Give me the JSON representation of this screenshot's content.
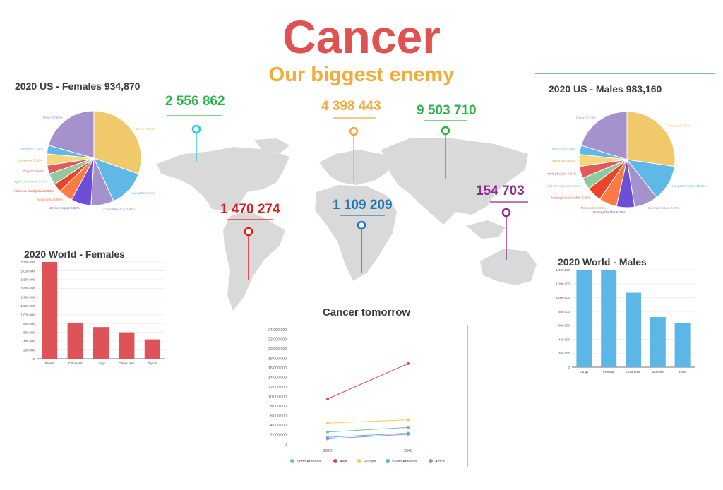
{
  "header": {
    "title": "Cancer",
    "subtitle": "Our biggest enemy",
    "title_color": "#e05252",
    "subtitle_color": "#f3ac3c"
  },
  "map": {
    "land_color": "#d9d9d9",
    "markers": [
      {
        "value": "2 556 862",
        "color": "#2bb44a",
        "pin_color": "#21d0d8"
      },
      {
        "value": "4 398 443",
        "color": "#f3ac3c",
        "pin_color": "#f3ac3c"
      },
      {
        "value": "9 503 710",
        "color": "#2bb44a",
        "pin_color": "#2bb44a"
      },
      {
        "value": "1 470 274",
        "color": "#e01b1b",
        "pin_color": "#e01b1b"
      },
      {
        "value": "1 109 209",
        "color": "#1e77c1",
        "pin_color": "#1e77c1"
      },
      {
        "value": "154 703",
        "color": "#8e2a8e",
        "pin_color": "#8e2a8e"
      }
    ]
  },
  "chart_data": [
    {
      "id": "us-females",
      "type": "pie",
      "title": "2020 US - Females 934,870",
      "slices": [
        {
          "label": "Breast 30.39%",
          "value": 30.39,
          "color": "#f0c96b"
        },
        {
          "label": "Lung&Bronchus 12.75%",
          "value": 12.75,
          "color": "#5fb8e6"
        },
        {
          "label": "Colon&Rectum 7.84%",
          "value": 7.84,
          "color": "#a592cc"
        },
        {
          "label": "Uterine corpus 6.86%",
          "value": 6.86,
          "color": "#6c4fd9"
        },
        {
          "label": "Melanoma 4.90%",
          "value": 4.9,
          "color": "#ff7a45"
        },
        {
          "label": "Kidney& renal pelvis 2.94%",
          "value": 2.94,
          "color": "#e8452b"
        },
        {
          "label": "Non-Hodgkin lymphoma 3.92%",
          "value": 3.92,
          "color": "#8fc9a0"
        },
        {
          "label": "Thyroid 2.94%",
          "value": 2.94,
          "color": "#e35a5a"
        },
        {
          "label": "Leukemia 3.92%",
          "value": 3.92,
          "color": "#f6d77a"
        },
        {
          "label": "Pancreas 2.94%",
          "value": 2.94,
          "color": "#62b6e8"
        },
        {
          "label": "Other 20.59%",
          "value": 20.59,
          "color": "#a592cc"
        }
      ]
    },
    {
      "id": "us-males",
      "type": "pie",
      "title": "2020 US - Males 983,160",
      "slices": [
        {
          "label": "Prostate 27.27%",
          "value": 27.27,
          "color": "#f0c96b"
        },
        {
          "label": "Lung&Bronchus 12.12%",
          "value": 12.12,
          "color": "#5fb8e6"
        },
        {
          "label": "Colon&Rectum 8.08%",
          "value": 8.08,
          "color": "#a592cc"
        },
        {
          "label": "Urinary bladder 6.06%",
          "value": 6.06,
          "color": "#6c4fd9"
        },
        {
          "label": "Melanoma 6.06%",
          "value": 6.06,
          "color": "#ff7a45"
        },
        {
          "label": "Kidney& renal pelvis 5.05%",
          "value": 5.05,
          "color": "#e8452b"
        },
        {
          "label": "Non-Hodgkin lymphoma 4.04%",
          "value": 4.04,
          "color": "#8fc9a0"
        },
        {
          "label": "Oral cavity& pharynx 4.04%",
          "value": 4.04,
          "color": "#e35a5a"
        },
        {
          "label": "Leukemia 4.04%",
          "value": 4.04,
          "color": "#f6d77a"
        },
        {
          "label": "Pancreas 3.03%",
          "value": 3.03,
          "color": "#62b6e8"
        },
        {
          "label": "Other 20.20%",
          "value": 20.2,
          "color": "#a592cc"
        }
      ]
    },
    {
      "id": "world-females",
      "type": "bar",
      "title": "2020 World - Females",
      "categories": [
        "Breast",
        "Colorectal",
        "Lungs",
        "Cervix uteri",
        "Thyroid"
      ],
      "values": [
        2260000,
        820000,
        720000,
        600000,
        440000
      ],
      "ylim": [
        0,
        2200000
      ],
      "yticks": [
        "0",
        "200.000",
        "400.000",
        "600.000",
        "800.000",
        "1.000.000",
        "1.200.000",
        "1.400.000",
        "1.600.000",
        "1.800.000",
        "2.000.000",
        "2.200.000"
      ],
      "color": "#de5357",
      "grid": true
    },
    {
      "id": "world-males",
      "type": "bar",
      "title": "2020 World - Males",
      "categories": [
        "Lungs",
        "Prostate",
        "Colorectal",
        "Stomach",
        "Liver"
      ],
      "values": [
        1440000,
        1410000,
        1070000,
        720000,
        630000
      ],
      "ylim": [
        0,
        1400000
      ],
      "yticks": [
        "0",
        "200.000",
        "400.000",
        "600.000",
        "800.000",
        "1.000.000",
        "1.200.000",
        "1.400.000"
      ],
      "color": "#5db7e6",
      "grid": true
    },
    {
      "id": "cancer-tomorrow",
      "type": "line",
      "title": "Cancer tomorrow",
      "x": [
        "2020",
        "2040"
      ],
      "ylim": [
        0,
        24000000
      ],
      "yticks": [
        "0",
        "2.000.000",
        "4.000.000",
        "6.000.000",
        "8.000.000",
        "10.000.000",
        "12.000.000",
        "14.000.000",
        "16.000.000",
        "18.000.000",
        "20.000.000",
        "22.000.000",
        "24.000.000"
      ],
      "series": [
        {
          "name": "North America",
          "values": [
            2560000,
            3500000
          ],
          "color": "#7bbfa0"
        },
        {
          "name": "Asia",
          "values": [
            9500000,
            16900000
          ],
          "color": "#e0484a"
        },
        {
          "name": "Europe",
          "values": [
            4400000,
            5100000
          ],
          "color": "#f3cc55"
        },
        {
          "name": "South America",
          "values": [
            1470000,
            2300000
          ],
          "color": "#5bb6e3"
        },
        {
          "name": "Africa",
          "values": [
            1110000,
            2100000
          ],
          "color": "#a08bd1"
        }
      ],
      "legend_position": "bottom",
      "grid": false
    }
  ]
}
